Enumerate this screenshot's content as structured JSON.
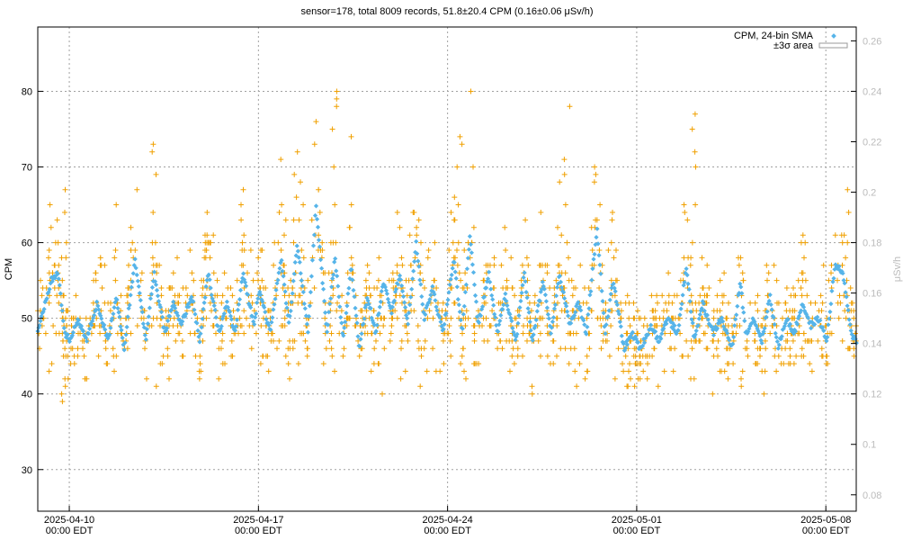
{
  "chart_data": {
    "type": "scatter",
    "title": "sensor=178, total 8009 records, 51.8±20.4 CPM (0.16±0.06 μSv/h)",
    "ylabel": "CPM",
    "ylabel_right": "μSv/h",
    "ylim": [
      24.5,
      88.5
    ],
    "y_right_lim": [
      0.0735,
      0.2655
    ],
    "y_ticks": [
      30,
      40,
      50,
      60,
      70,
      80
    ],
    "y_right_ticks": [
      "0.08",
      "0.1",
      "0.12",
      "0.14",
      "0.16",
      "0.18",
      "0.2",
      "0.22",
      "0.24",
      "0.26"
    ],
    "xlim": [
      "2025-04-08 20:00 EDT",
      "2025-05-09 03:00 EDT"
    ],
    "x_ticks": [
      {
        "date": "2025-04-10",
        "time": "00:00 EDT"
      },
      {
        "date": "2025-04-17",
        "time": "00:00 EDT"
      },
      {
        "date": "2025-04-24",
        "time": "00:00 EDT"
      },
      {
        "date": "2025-05-01",
        "time": "00:00 EDT"
      },
      {
        "date": "2025-05-08",
        "time": "00:00 EDT"
      }
    ],
    "grid": true,
    "legend_position": "top-right",
    "series": [
      {
        "name": "CPM, 24-bin SMA",
        "style": "points",
        "color": "#56b4e9"
      },
      {
        "name": "±3σ area",
        "style": "area",
        "color": "#ffffff"
      },
      {
        "style": "plus",
        "color": "#f0a000"
      }
    ],
    "sma_x_days": [
      0.0,
      0.5,
      0.75,
      1.0,
      1.2,
      1.5,
      1.8,
      2.2,
      2.6,
      2.9,
      3.2,
      3.6,
      4.0,
      4.3,
      4.7,
      5.0,
      5.3,
      5.7,
      6.0,
      6.3,
      6.7,
      7.0,
      7.3,
      7.6,
      8.0,
      8.2,
      8.6,
      9.0,
      9.3,
      9.6,
      10.0,
      10.3,
      10.7,
      11.0,
      11.3,
      11.6,
      11.9,
      12.2,
      12.5,
      12.8,
      13.1,
      13.4,
      13.7,
      14.0,
      14.3,
      14.6,
      15.0,
      15.4,
      15.7,
      16.0,
      16.3,
      16.7,
      17.0,
      17.3,
      17.7,
      18.0,
      18.3,
      18.7,
      19.0,
      19.3,
      19.7,
      20.0,
      20.3,
      20.7,
      21.0,
      21.3,
      21.7,
      22.0,
      22.3,
      22.7,
      23.0,
      23.3,
      23.7,
      24.0,
      24.3,
      24.6,
      25.0,
      25.3,
      25.7,
      26.0,
      26.2,
      26.5,
      26.8,
      27.1,
      27.4,
      27.7,
      28.0,
      28.3,
      28.6,
      28.9,
      29.2,
      29.5,
      29.8,
      30.1,
      30.3
    ],
    "sma_values": [
      48,
      55,
      56,
      48,
      47,
      50,
      47,
      52,
      47,
      53,
      46,
      58,
      47,
      56,
      48,
      52,
      49,
      53,
      47,
      56,
      48,
      52,
      48,
      56,
      49,
      54,
      48,
      58,
      49,
      60,
      48,
      65,
      48,
      58,
      47,
      57,
      46,
      53,
      48,
      55,
      51,
      56,
      49,
      60,
      50,
      54,
      48,
      58,
      48,
      61,
      49,
      56,
      48,
      53,
      47,
      56,
      47,
      55,
      48,
      56,
      49,
      52,
      48,
      62,
      48,
      55,
      46,
      48,
      46,
      49,
      47,
      50,
      48,
      57,
      47,
      52,
      48,
      50,
      46,
      55,
      48,
      50,
      47,
      53,
      46,
      50,
      48,
      52,
      49,
      50,
      47,
      57,
      56,
      48,
      47
    ],
    "cpm_samples": [
      {
        "day": 1.0,
        "values": [
          64,
          67,
          60,
          58,
          55,
          50,
          45,
          42,
          40,
          39
        ]
      },
      {
        "day": 4.3,
        "values": [
          73,
          72,
          69,
          64,
          60,
          55,
          50
        ]
      },
      {
        "day": 7.5,
        "values": [
          67,
          65,
          63,
          60,
          55
        ]
      },
      {
        "day": 11.0,
        "values": [
          80,
          79,
          78,
          75,
          70,
          65,
          60,
          55
        ]
      },
      {
        "day": 15.6,
        "values": [
          74,
          73,
          70,
          65,
          60
        ]
      },
      {
        "day": 19.6,
        "values": [
          78,
          71,
          69,
          65,
          60
        ]
      },
      {
        "day": 24.3,
        "values": [
          77,
          75,
          72,
          70,
          65,
          60
        ]
      },
      {
        "day": 30.0,
        "values": [
          67,
          64,
          60,
          55
        ]
      }
    ]
  }
}
